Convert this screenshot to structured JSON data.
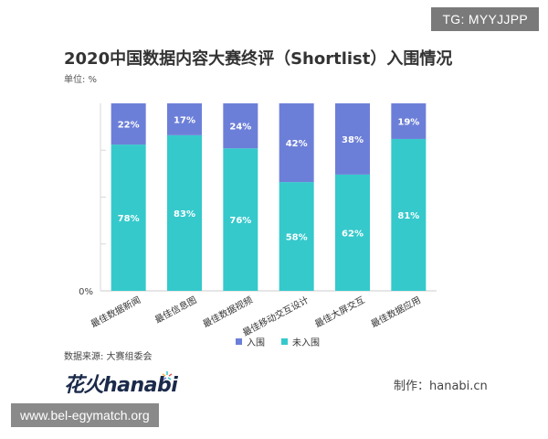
{
  "tag": "TG: MYYJJPP",
  "watermark": "www.bel-egymatch.org",
  "source": "数据来源: 大赛组委会",
  "logo": {
    "text": "花火hanabi"
  },
  "credit": "制作：hanabi.cn",
  "colors": {
    "shortlist": "#6c7fd8",
    "not_shortlist": "#35c9cc"
  },
  "chart_data": {
    "type": "bar",
    "stacked": true,
    "title": "2020中国数据内容大赛终评（Shortlist）入围情况",
    "unit_label": "单位: %",
    "categories": [
      "最佳数据新闻",
      "最佳信息图",
      "最佳数据视频",
      "最佳移动交互设计",
      "最佳大屏交互",
      "最佳数据应用"
    ],
    "series": [
      {
        "name": "入围",
        "values": [
          22,
          17,
          24,
          42,
          38,
          19
        ],
        "labels": [
          "22%",
          "17%",
          "24%",
          "42%",
          "38%",
          "19%"
        ]
      },
      {
        "name": "未入围",
        "values": [
          78,
          83,
          76,
          58,
          62,
          81
        ],
        "labels": [
          "78%",
          "83%",
          "76%",
          "58%",
          "62%",
          "81%"
        ]
      }
    ],
    "ylim": [
      0,
      100
    ],
    "y_tick_labels": [
      "0%"
    ],
    "legend_position": "bottom-center"
  }
}
